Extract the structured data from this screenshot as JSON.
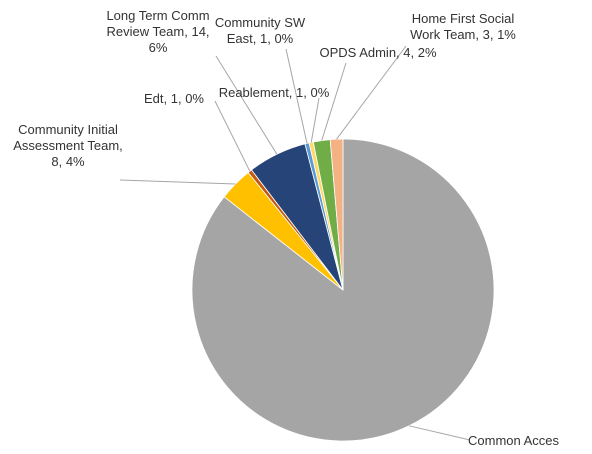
{
  "chart_data": {
    "type": "pie",
    "title": "",
    "slices": [
      {
        "name": "Common Access",
        "label": "Common Acces",
        "value": 190,
        "percent": "",
        "color": "#a5a5a5"
      },
      {
        "name": "Community Initial Assessment Team",
        "label_lines": [
          "Community Initial",
          "Assessment Team,",
          "8, 4%"
        ],
        "value": 8,
        "percent": "4%",
        "color": "#ffc000"
      },
      {
        "name": "Edt",
        "label_lines": [
          "Edt, 1, 0%"
        ],
        "value": 1,
        "percent": "0%",
        "color": "#c55a11"
      },
      {
        "name": "Long Term Community Review Team",
        "label_lines": [
          "Long Term Comm",
          "Review Team, 14,",
          "6%"
        ],
        "value": 14,
        "percent": "6%",
        "color": "#264478"
      },
      {
        "name": "Community SW East",
        "label_lines": [
          "Community SW",
          "East, 1, 0%"
        ],
        "value": 1,
        "percent": "0%",
        "color": "#5b9bd5"
      },
      {
        "name": "Reablement",
        "label_lines": [
          "Reablement, 1, 0%"
        ],
        "value": 1,
        "percent": "0%",
        "color": "#ffd966"
      },
      {
        "name": "OPDS Admin",
        "label_lines": [
          "OPDS Admin, 4, 2%"
        ],
        "value": 4,
        "percent": "2%",
        "color": "#70ad47"
      },
      {
        "name": "Home First Social Work Team",
        "label_lines": [
          "Home First Social",
          "Work Team, 3, 1%"
        ],
        "value": 3,
        "percent": "1%",
        "color": "#f4b183"
      }
    ]
  }
}
